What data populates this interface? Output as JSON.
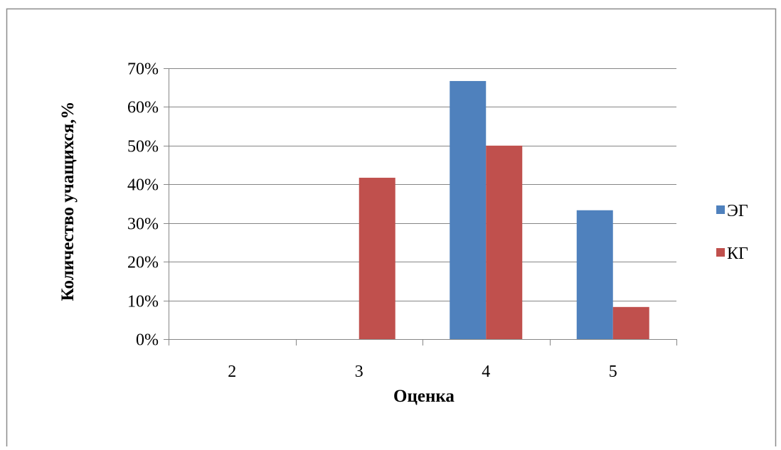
{
  "chart_data": {
    "type": "bar",
    "title": "",
    "xlabel": "Оценка",
    "ylabel": "Количество учащихся,%",
    "categories": [
      "2",
      "3",
      "4",
      "5"
    ],
    "series": [
      {
        "name": "ЭГ",
        "color": "#4F81BD",
        "values": [
          0,
          0,
          66.7,
          33.3
        ]
      },
      {
        "name": "КГ",
        "color": "#C0504D",
        "values": [
          0,
          41.7,
          50,
          8.3
        ]
      }
    ],
    "ylim": [
      0,
      70
    ],
    "yticks": [
      0,
      10,
      20,
      30,
      40,
      50,
      60,
      70
    ],
    "ytick_labels": [
      "0%",
      "10%",
      "20%",
      "30%",
      "40%",
      "50%",
      "60%",
      "70%"
    ],
    "grid": true,
    "legend": "right"
  },
  "colors": {
    "gridline": "#868686",
    "axis": "#868686",
    "frame_border": "#8c8c8c"
  }
}
